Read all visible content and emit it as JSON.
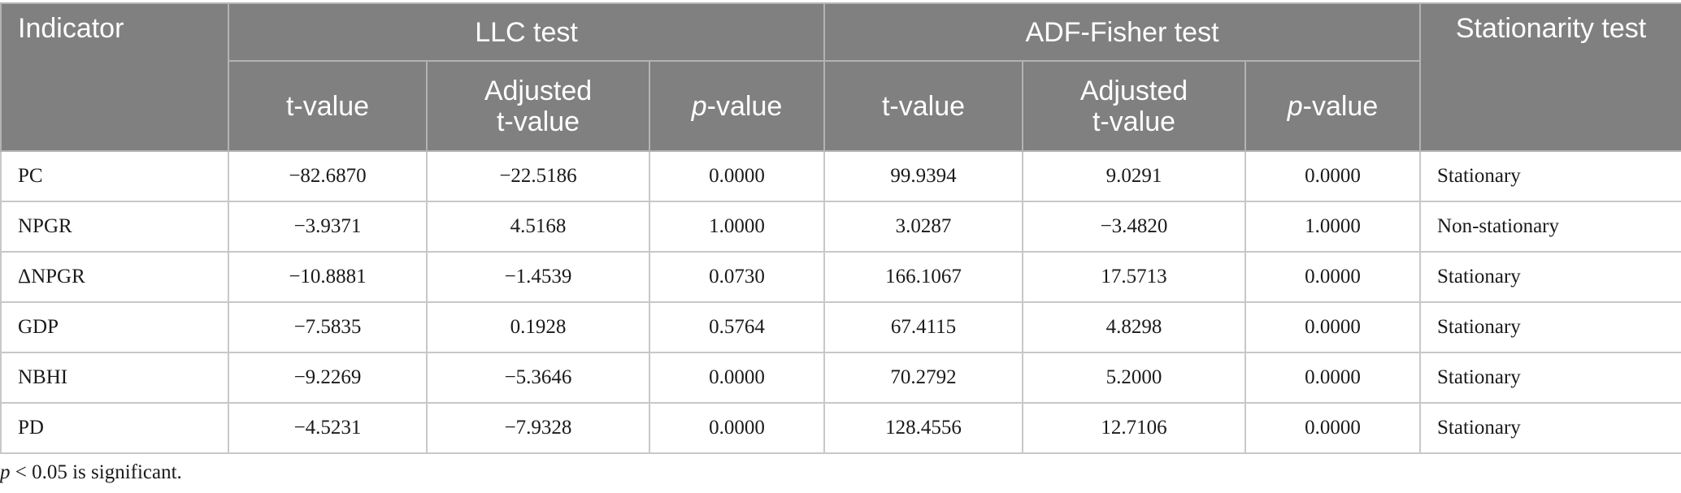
{
  "header": {
    "indicator": "Indicator",
    "llc_test": "LLC test",
    "adf_test": "ADF-Fisher test",
    "stationarity_test": "Stationarity test",
    "t_value": "t-value",
    "adjusted_line1": "Adjusted",
    "adjusted_line2": "t-value",
    "p_italic": "p",
    "p_suffix": "-value"
  },
  "rows": [
    {
      "indicator": "PC",
      "llc_t": "−82.6870",
      "llc_adj": "−22.5186",
      "llc_p": "0.0000",
      "adf_t": "99.9394",
      "adf_adj": "9.0291",
      "adf_p": "0.0000",
      "result": "Stationary"
    },
    {
      "indicator": "NPGR",
      "llc_t": "−3.9371",
      "llc_adj": "4.5168",
      "llc_p": "1.0000",
      "adf_t": "3.0287",
      "adf_adj": "−3.4820",
      "adf_p": "1.0000",
      "result": "Non-stationary"
    },
    {
      "indicator": "ΔNPGR",
      "llc_t": "−10.8881",
      "llc_adj": "−1.4539",
      "llc_p": "0.0730",
      "adf_t": "166.1067",
      "adf_adj": "17.5713",
      "adf_p": "0.0000",
      "result": "Stationary"
    },
    {
      "indicator": "GDP",
      "llc_t": "−7.5835",
      "llc_adj": "0.1928",
      "llc_p": "0.5764",
      "adf_t": "67.4115",
      "adf_adj": "4.8298",
      "adf_p": "0.0000",
      "result": "Stationary"
    },
    {
      "indicator": "NBHI",
      "llc_t": "−9.2269",
      "llc_adj": "−5.3646",
      "llc_p": "0.0000",
      "adf_t": "70.2792",
      "adf_adj": "5.2000",
      "adf_p": "0.0000",
      "result": "Stationary"
    },
    {
      "indicator": "PD",
      "llc_t": "−4.5231",
      "llc_adj": "−7.9328",
      "llc_p": "0.0000",
      "adf_t": "128.4556",
      "adf_adj": "12.7106",
      "adf_p": "0.0000",
      "result": "Stationary"
    }
  ],
  "footnote": {
    "p_italic": "p",
    "text": " < 0.05 is significant."
  }
}
